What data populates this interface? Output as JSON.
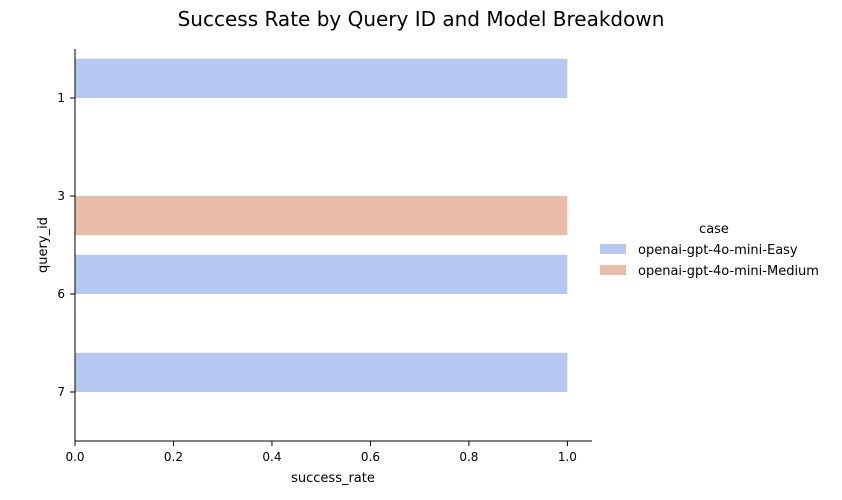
{
  "chart_data": {
    "type": "bar",
    "orientation": "horizontal",
    "title": "Success Rate by Query ID and Model Breakdown",
    "xlabel": "success_rate",
    "ylabel": "query_id",
    "xlim": [
      0,
      1.05
    ],
    "x_ticks": [
      "0.0",
      "0.2",
      "0.4",
      "0.6",
      "0.8",
      "1.0"
    ],
    "categories": [
      "1",
      "3",
      "6",
      "7"
    ],
    "legend": {
      "title": "case",
      "placement": "right",
      "entries": [
        "openai-gpt-4o-mini-Easy",
        "openai-gpt-4o-mini-Medium"
      ]
    },
    "series": [
      {
        "name": "openai-gpt-4o-mini-Easy",
        "color": "#b4c8f2",
        "values": [
          1.0,
          null,
          1.0,
          1.0
        ]
      },
      {
        "name": "openai-gpt-4o-mini-Medium",
        "color": "#ebbca7",
        "values": [
          null,
          1.0,
          null,
          null
        ]
      }
    ],
    "grid": false
  }
}
